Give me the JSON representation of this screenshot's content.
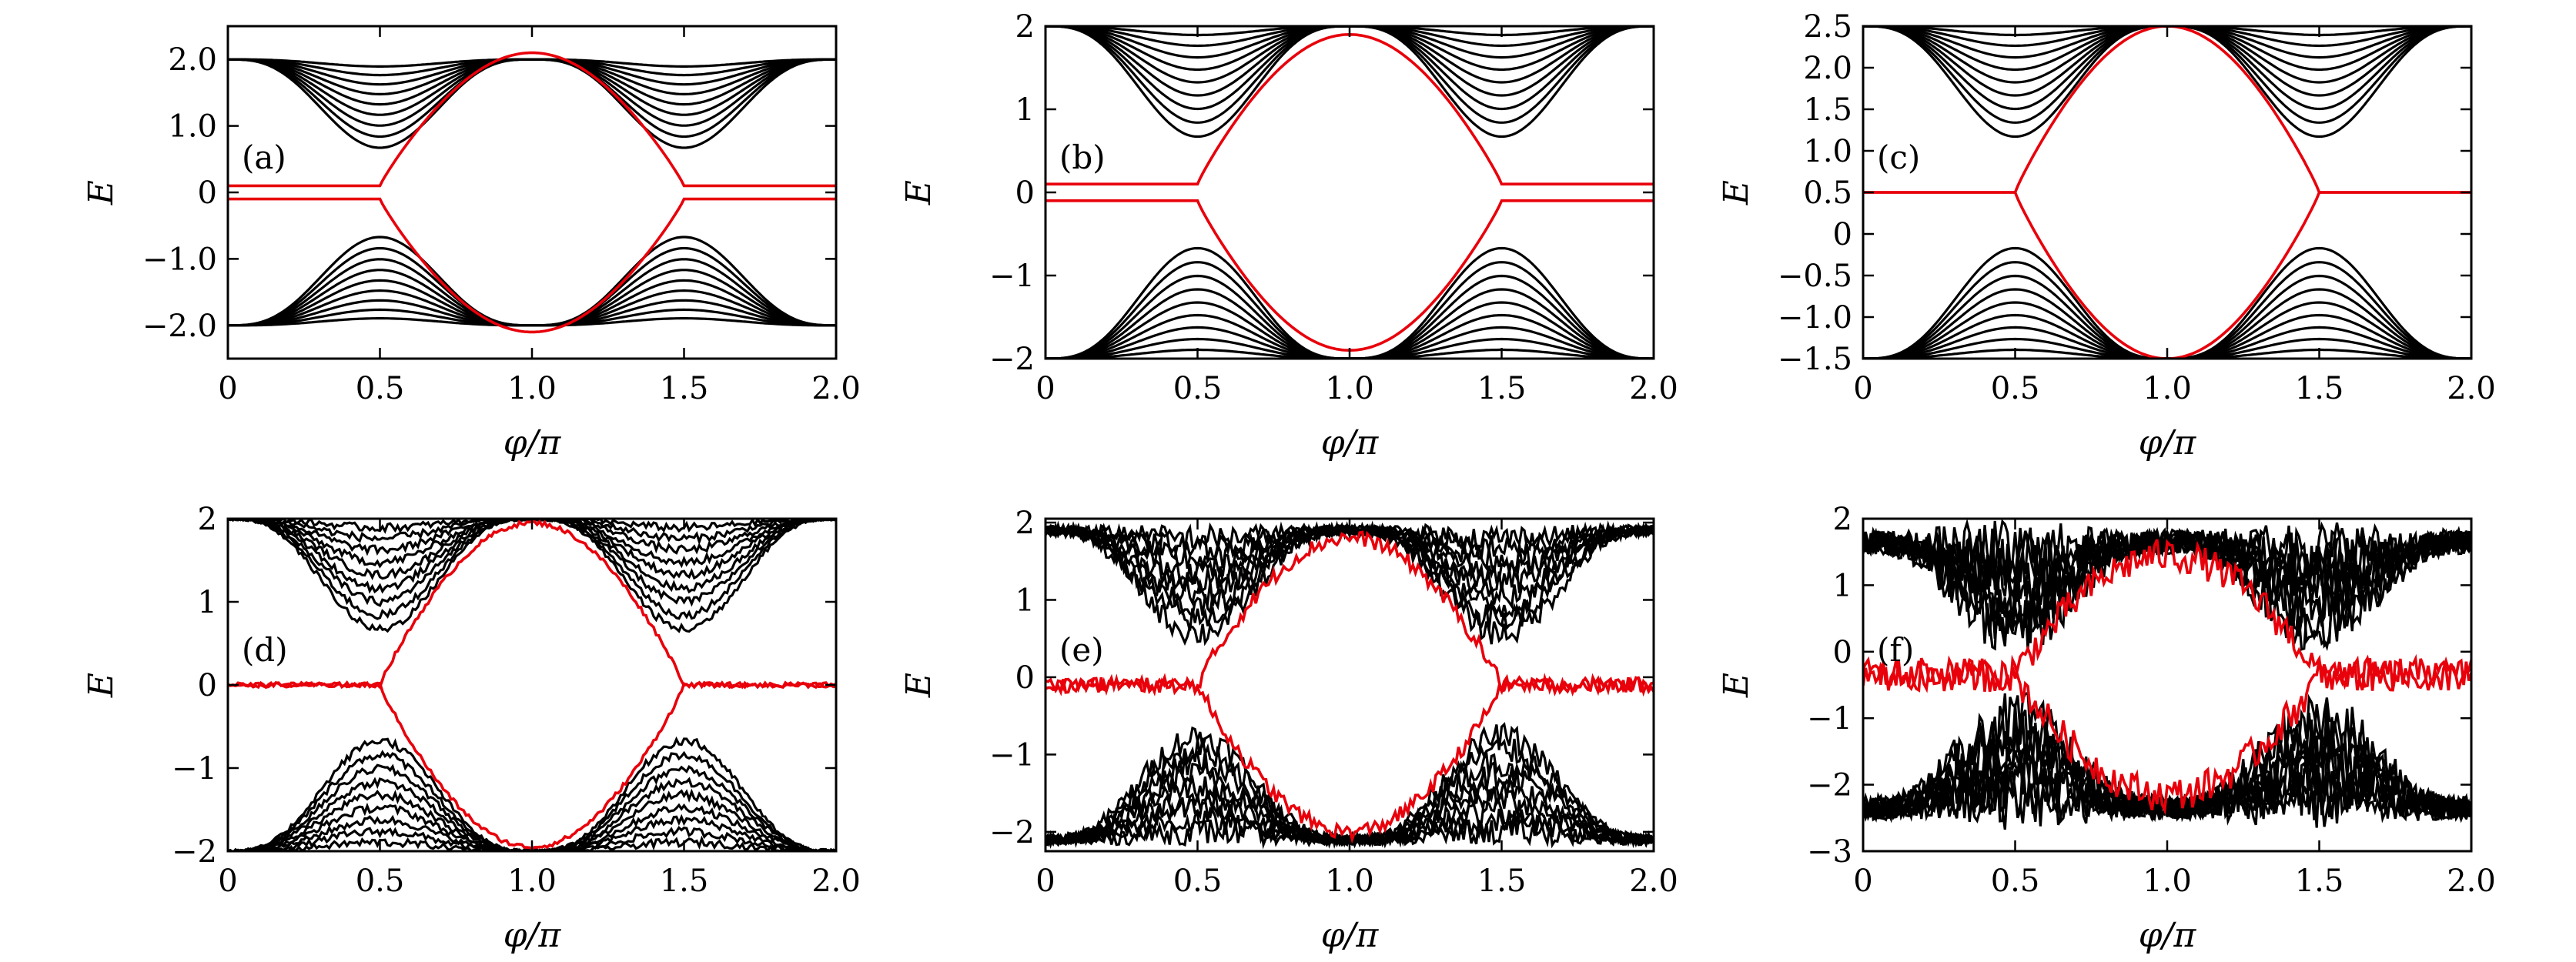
{
  "figure": {
    "panels": [
      "(a)",
      "(b)",
      "(c)",
      "(d)",
      "(e)",
      "(f)"
    ]
  },
  "colors": {
    "bulk": "#000000",
    "edge": "#e8000b",
    "axes": "#000000",
    "background": "#ffffff"
  },
  "chart_data": [
    {
      "type": "line",
      "panel": "(a)",
      "xlabel": "φ/π",
      "ylabel": "E",
      "xlim": [
        0,
        2.0
      ],
      "ylim": [
        -2.5,
        2.5
      ],
      "xticks": [
        "0",
        "0.5",
        "1.0",
        "1.5",
        "2.0"
      ],
      "yticks": [
        {
          "v": 2.0,
          "t": "2.0"
        },
        {
          "v": 1.0,
          "t": "1.0"
        },
        {
          "v": 0,
          "t": "0"
        },
        {
          "v": -1.0,
          "t": "−1.0"
        },
        {
          "v": -2.0,
          "t": "−2.0"
        }
      ],
      "bands": {
        "top": 2.0,
        "count": 9,
        "gap_min": 0.5,
        "gap_max": 2.0
      },
      "edge_states": {
        "zero_energy": 0.1,
        "peak": 2.1,
        "transition_phi": [
          0.5,
          1.5
        ],
        "offset": 0
      },
      "disorder": 0,
      "grid": false,
      "legend": "none"
    },
    {
      "type": "line",
      "panel": "(b)",
      "xlabel": "φ/π",
      "ylabel": "E",
      "xlim": [
        0,
        2.0
      ],
      "ylim": [
        -2,
        2
      ],
      "xticks": [
        "0",
        "0.5",
        "1.0",
        "1.5",
        "2.0"
      ],
      "yticks": [
        {
          "v": 2,
          "t": "2"
        },
        {
          "v": 1,
          "t": "1"
        },
        {
          "v": 0,
          "t": "0"
        },
        {
          "v": -1,
          "t": "−1"
        },
        {
          "v": -2,
          "t": "−2"
        }
      ],
      "bands": {
        "top": 2.0,
        "count": 9,
        "gap_min": 0.5,
        "gap_max": 2.0
      },
      "edge_states": {
        "zero_energy": 0.1,
        "peak": 1.9,
        "transition_phi": [
          0.5,
          1.5
        ],
        "offset": 0
      },
      "disorder": 0,
      "grid": false,
      "legend": "none"
    },
    {
      "type": "line",
      "panel": "(c)",
      "xlabel": "φ/π",
      "ylabel": "E",
      "xlim": [
        0,
        2.0
      ],
      "ylim": [
        -1.5,
        2.5
      ],
      "xticks": [
        "0",
        "0.5",
        "1.0",
        "1.5",
        "2.0"
      ],
      "yticks": [
        {
          "v": 2.5,
          "t": "2.5"
        },
        {
          "v": 2.0,
          "t": "2.0"
        },
        {
          "v": 1.5,
          "t": "1.5"
        },
        {
          "v": 1.0,
          "t": "1.0"
        },
        {
          "v": 0.5,
          "t": "0.5"
        },
        {
          "v": 0,
          "t": "0"
        },
        {
          "v": -0.5,
          "t": "−0.5"
        },
        {
          "v": -1.0,
          "t": "−1.0"
        },
        {
          "v": -1.5,
          "t": "−1.5"
        }
      ],
      "bands": {
        "top": 2.0,
        "count": 9,
        "gap_min": 0.5,
        "gap_max": 2.0
      },
      "edge_states": {
        "zero_energy": 0.0,
        "peak": 2.0,
        "transition_phi": [
          0.5,
          1.5
        ],
        "offset": 0.5
      },
      "disorder": 0,
      "grid": false,
      "legend": "none"
    },
    {
      "type": "line",
      "panel": "(d)",
      "xlabel": "φ/π",
      "ylabel": "E",
      "xlim": [
        0,
        2.0
      ],
      "ylim": [
        -2,
        2
      ],
      "xticks": [
        "0",
        "0.5",
        "1.0",
        "1.5",
        "2.0"
      ],
      "yticks": [
        {
          "v": 2,
          "t": "2"
        },
        {
          "v": 1,
          "t": "1"
        },
        {
          "v": 0,
          "t": "0"
        },
        {
          "v": -1,
          "t": "−1"
        },
        {
          "v": -2,
          "t": "−2"
        }
      ],
      "bands": {
        "top": 2.0,
        "count": 9,
        "gap_min": 0.5,
        "gap_max": 2.0
      },
      "edge_states": {
        "zero_energy": 0.0,
        "peak": 1.95,
        "transition_phi": [
          0.5,
          1.5
        ],
        "offset": 0
      },
      "disorder": 0.02,
      "grid": false,
      "legend": "none"
    },
    {
      "type": "line",
      "panel": "(e)",
      "xlabel": "φ/π",
      "ylabel": "E",
      "xlim": [
        0,
        2.0
      ],
      "ylim": [
        -2.25,
        2.05
      ],
      "xticks": [
        "0",
        "0.5",
        "1.0",
        "1.5",
        "2.0"
      ],
      "yticks": [
        {
          "v": 2,
          "t": "2"
        },
        {
          "v": 1,
          "t": "1"
        },
        {
          "v": 0,
          "t": "0"
        },
        {
          "v": -1,
          "t": "−1"
        },
        {
          "v": -2,
          "t": "−2"
        }
      ],
      "bands": {
        "top": 2.0,
        "count": 9,
        "gap_min": 0.5,
        "gap_max": 2.0
      },
      "edge_states": {
        "zero_energy": 0.0,
        "peak": 1.9,
        "transition_phi": [
          0.5,
          1.5
        ],
        "offset": -0.1
      },
      "disorder": 0.07,
      "grid": false,
      "legend": "none"
    },
    {
      "type": "line",
      "panel": "(f)",
      "xlabel": "φ/π",
      "ylabel": "E",
      "xlim": [
        0,
        2.0
      ],
      "ylim": [
        -3,
        2
      ],
      "xticks": [
        "0",
        "0.5",
        "1.0",
        "1.5",
        "2.0"
      ],
      "yticks": [
        {
          "v": 2,
          "t": "2"
        },
        {
          "v": 1,
          "t": "1"
        },
        {
          "v": 0,
          "t": "0"
        },
        {
          "v": -1,
          "t": "−1"
        },
        {
          "v": -2,
          "t": "−2"
        },
        {
          "v": -3,
          "t": "−3"
        }
      ],
      "bands": {
        "top": 2.0,
        "count": 9,
        "gap_min": 0.5,
        "gap_max": 2.0
      },
      "edge_states": {
        "zero_energy": 0.0,
        "peak": 1.8,
        "transition_phi": [
          0.5,
          1.5
        ],
        "offset": -0.35
      },
      "disorder": 0.18,
      "grid": false,
      "legend": "none"
    }
  ]
}
